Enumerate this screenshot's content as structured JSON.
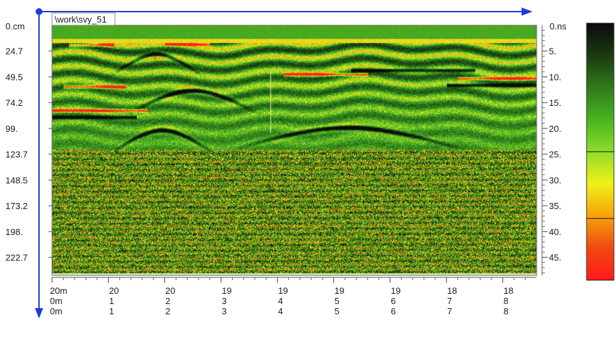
{
  "chart_data": {
    "type": "heatmap",
    "title": "\\work\\svy_51",
    "depth_unit_label": "0.cm",
    "time_unit_label": "0.ns",
    "depth_ticks": [
      "24.7",
      "49.5",
      "74.2",
      "99.",
      "123.7",
      "148.5",
      "173.2",
      "198.",
      "222.7"
    ],
    "depth_values_cm": [
      24.7,
      49.5,
      74.2,
      99.0,
      123.7,
      148.5,
      173.2,
      198.0,
      222.7
    ],
    "depth_range_cm": [
      0,
      240
    ],
    "time_ticks": [
      "5.",
      "10.",
      "15.",
      "20.",
      "25.",
      "30.",
      "35.",
      "40.",
      "45."
    ],
    "time_values_ns": [
      5,
      10,
      15,
      20,
      25,
      30,
      35,
      40,
      45
    ],
    "time_range_ns": [
      0,
      48.5
    ],
    "x_rows": [
      [
        "20m",
        "20",
        "20",
        "19",
        "19",
        "19",
        "19",
        "18",
        "18"
      ],
      [
        "0m",
        "1",
        "2",
        "3",
        "4",
        "5",
        "6",
        "7",
        "8"
      ],
      [
        "0m",
        "1",
        "2",
        "3",
        "4",
        "5",
        "6",
        "7",
        "8"
      ]
    ],
    "x_range_m": [
      0,
      8.6
    ],
    "colorbar_colors": [
      "#0a0a0a",
      "#1c3a10",
      "#2f7a1c",
      "#49b421",
      "#8fdc2a",
      "#f0f018",
      "#f5a20a",
      "#f04a10",
      "#ff1a1a"
    ],
    "colorbar_breaks": [
      0.0,
      0.5,
      0.76,
      1.0
    ],
    "hyperbolas": [
      {
        "apex_x_m": 1.95,
        "apex_time_ns": 20.3,
        "half_width_m": 0.75,
        "strength": 1.0
      },
      {
        "apex_x_m": 2.5,
        "apex_time_ns": 12.6,
        "half_width_m": 0.95,
        "strength": 1.0
      },
      {
        "apex_x_m": 1.85,
        "apex_time_ns": 5.6,
        "half_width_m": 0.7,
        "strength": 0.8
      },
      {
        "apex_x_m": 5.25,
        "apex_time_ns": 19.8,
        "half_width_m": 1.75,
        "strength": 1.0
      }
    ],
    "reflector_bands": [
      {
        "x_from_m": 0.0,
        "x_to_m": 1.7,
        "time_ns": 16.5,
        "color": "red"
      },
      {
        "x_from_m": 0.0,
        "x_to_m": 1.5,
        "time_ns": 17.8,
        "color": "black"
      },
      {
        "x_from_m": 4.1,
        "x_to_m": 5.6,
        "time_ns": 9.5,
        "color": "red"
      },
      {
        "x_from_m": 5.3,
        "x_to_m": 7.5,
        "time_ns": 8.7,
        "color": "black"
      },
      {
        "x_from_m": 7.2,
        "x_to_m": 8.6,
        "time_ns": 10.3,
        "color": "red"
      },
      {
        "x_from_m": 7.0,
        "x_to_m": 8.6,
        "time_ns": 11.6,
        "color": "black"
      },
      {
        "x_from_m": 0.3,
        "x_to_m": 1.1,
        "time_ns": 3.8,
        "color": "red"
      },
      {
        "x_from_m": 2.0,
        "x_to_m": 2.8,
        "time_ns": 3.6,
        "color": "red"
      },
      {
        "x_from_m": 0.2,
        "x_to_m": 1.3,
        "time_ns": 11.9,
        "color": "red"
      }
    ],
    "marker_line_x_m": 3.87,
    "grid": false,
    "legend_placement": "right"
  }
}
